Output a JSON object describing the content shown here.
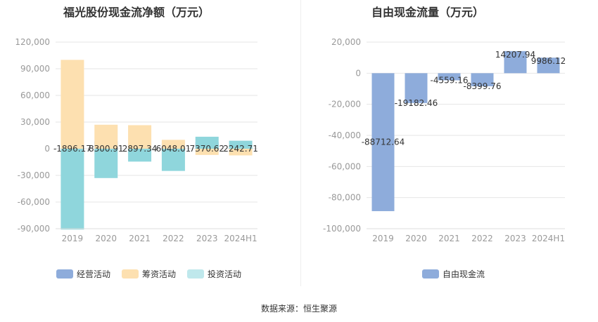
{
  "chart_data": [
    {
      "type": "bar",
      "title": "福光股份现金流净额（万元）",
      "categories": [
        "2019",
        "2020",
        "2021",
        "2022",
        "2023",
        "2024H1"
      ],
      "y_ticks": [
        "120,000",
        "90,000",
        "60,000",
        "30,000",
        "0",
        "-30,000",
        "-60,000",
        "-90,000"
      ],
      "ylim": [
        -90000,
        120000
      ],
      "series": [
        {
          "name": "经营活动",
          "color": "#8eacdb",
          "values": [
            -1896.17,
            8300.91,
            2897.34,
            6048.01,
            7370.62,
            2242.71
          ]
        },
        {
          "name": "筹资活动",
          "color": "#fde0b0",
          "values": [
            100000,
            27000,
            26500,
            10000,
            -7000,
            -7500
          ]
        },
        {
          "name": "投资活动",
          "color": "#8fd6dc",
          "values": [
            -91000,
            -33000,
            -14500,
            -25000,
            13500,
            9000
          ]
        }
      ],
      "data_labels": [
        "-1896.17",
        "8300.91",
        "2897.34",
        "6048.01",
        "7370.62",
        "2242.71"
      ],
      "legend": "bottom"
    },
    {
      "type": "bar",
      "title": "自由现金流量（万元）",
      "categories": [
        "2019",
        "2020",
        "2021",
        "2022",
        "2023",
        "2024H1"
      ],
      "y_ticks": [
        "20,000",
        "0",
        "-20,000",
        "-40,000",
        "-60,000",
        "-80,000",
        "-100,000"
      ],
      "ylim": [
        -100000,
        20000
      ],
      "series": [
        {
          "name": "自由现金流",
          "color": "#8eacdb",
          "values": [
            -88712.64,
            -19182.46,
            -4559.16,
            -8399.76,
            14207.94,
            9986.12
          ]
        }
      ],
      "data_labels": [
        "-88712.64",
        "-19182.46",
        "-4559.16",
        "-8399.76",
        "14207.94",
        "9986.12"
      ],
      "legend": "bottom"
    }
  ],
  "source": "数据来源：恒生聚源"
}
